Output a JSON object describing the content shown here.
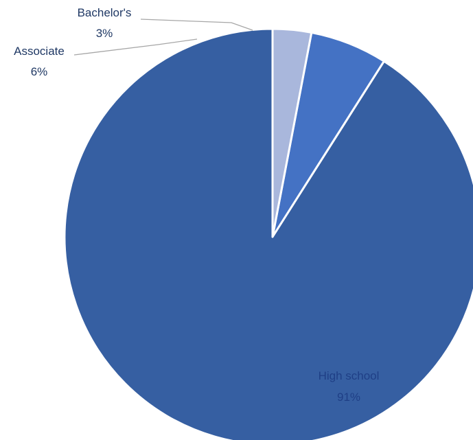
{
  "chart_data": {
    "type": "pie",
    "title": "",
    "start_angle_deg": 0,
    "direction": "counterclockwise",
    "legend": "none",
    "slices": [
      {
        "label": "High school",
        "value": 91,
        "display": "91%",
        "color": "#365fa2"
      },
      {
        "label": "Associate",
        "value": 6,
        "display": "6%",
        "color": "#4472c4"
      },
      {
        "label": "Bachelor's",
        "value": 3,
        "display": "3%",
        "color": "#a9b7dc"
      }
    ]
  }
}
